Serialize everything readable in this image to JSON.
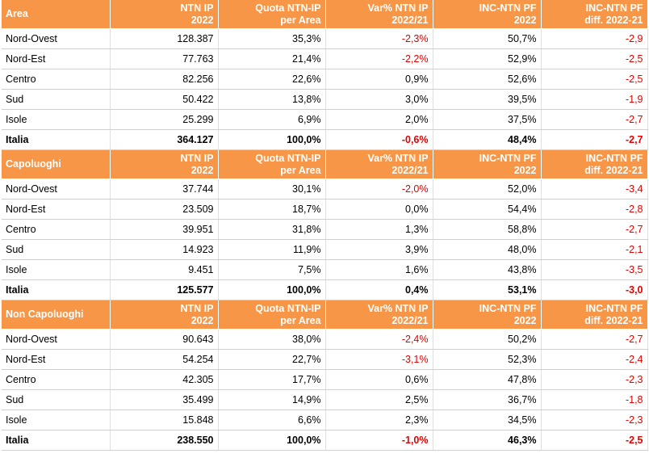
{
  "sections": [
    {
      "title": "Area",
      "headers": [
        "NTN IP\n2022",
        "Quota NTN-IP\nper Area",
        "Var% NTN IP\n2022/21",
        "INC-NTN PF\n2022",
        "INC-NTN PF\ndiff. 2022-21"
      ],
      "rows": [
        [
          "Nord-Ovest",
          "128.387",
          "35,3%",
          "-2,3%",
          "50,7%",
          "-2,9"
        ],
        [
          "Nord-Est",
          "77.763",
          "21,4%",
          "-2,2%",
          "52,9%",
          "-2,5"
        ],
        [
          "Centro",
          "82.256",
          "22,6%",
          "0,9%",
          "52,6%",
          "-2,5"
        ],
        [
          "Sud",
          "50.422",
          "13,8%",
          "3,0%",
          "39,5%",
          "-1,9"
        ],
        [
          "Isole",
          "25.299",
          "6,9%",
          "2,0%",
          "37,5%",
          "-2,7"
        ],
        [
          "Italia",
          "364.127",
          "100,0%",
          "-0,6%",
          "48,4%",
          "-2,7"
        ]
      ]
    },
    {
      "title": "Capoluoghi",
      "headers": [
        "NTN IP\n2022",
        "Quota NTN-IP\nper Area",
        "Var% NTN IP\n2022/21",
        "INC-NTN PF\n2022",
        "INC-NTN PF\ndiff. 2022-21"
      ],
      "rows": [
        [
          "Nord-Ovest",
          "37.744",
          "30,1%",
          "-2,0%",
          "52,0%",
          "-3,4"
        ],
        [
          "Nord-Est",
          "23.509",
          "18,7%",
          "0,0%",
          "54,4%",
          "-2,8"
        ],
        [
          "Centro",
          "39.951",
          "31,8%",
          "1,3%",
          "58,8%",
          "-2,7"
        ],
        [
          "Sud",
          "14.923",
          "11,9%",
          "3,9%",
          "48,0%",
          "-2,1"
        ],
        [
          "Isole",
          "9.451",
          "7,5%",
          "1,6%",
          "43,8%",
          "-3,5"
        ],
        [
          "Italia",
          "125.577",
          "100,0%",
          "0,4%",
          "53,1%",
          "-3,0"
        ]
      ]
    },
    {
      "title": "Non Capoluoghi",
      "headers": [
        "NTN IP\n2022",
        "Quota NTN-IP\nper Area",
        "Var% NTN IP\n2022/21",
        "INC-NTN PF\n2022",
        "INC-NTN PF\ndiff. 2022-21"
      ],
      "rows": [
        [
          "Nord-Ovest",
          "90.643",
          "38,0%",
          "-2,4%",
          "50,2%",
          "-2,7"
        ],
        [
          "Nord-Est",
          "54.254",
          "22,7%",
          "-3,1%",
          "52,3%",
          "-2,4"
        ],
        [
          "Centro",
          "42.305",
          "17,7%",
          "0,6%",
          "47,8%",
          "-2,3"
        ],
        [
          "Sud",
          "35.499",
          "14,9%",
          "2,5%",
          "36,7%",
          "-1,8"
        ],
        [
          "Isole",
          "15.848",
          "6,6%",
          "2,3%",
          "34,5%",
          "-2,3"
        ],
        [
          "Italia",
          "238.550",
          "100,0%",
          "-1,0%",
          "46,3%",
          "-2,5"
        ]
      ]
    }
  ],
  "colors": {
    "header_bg": "#f79646",
    "negative": "#e00000"
  }
}
